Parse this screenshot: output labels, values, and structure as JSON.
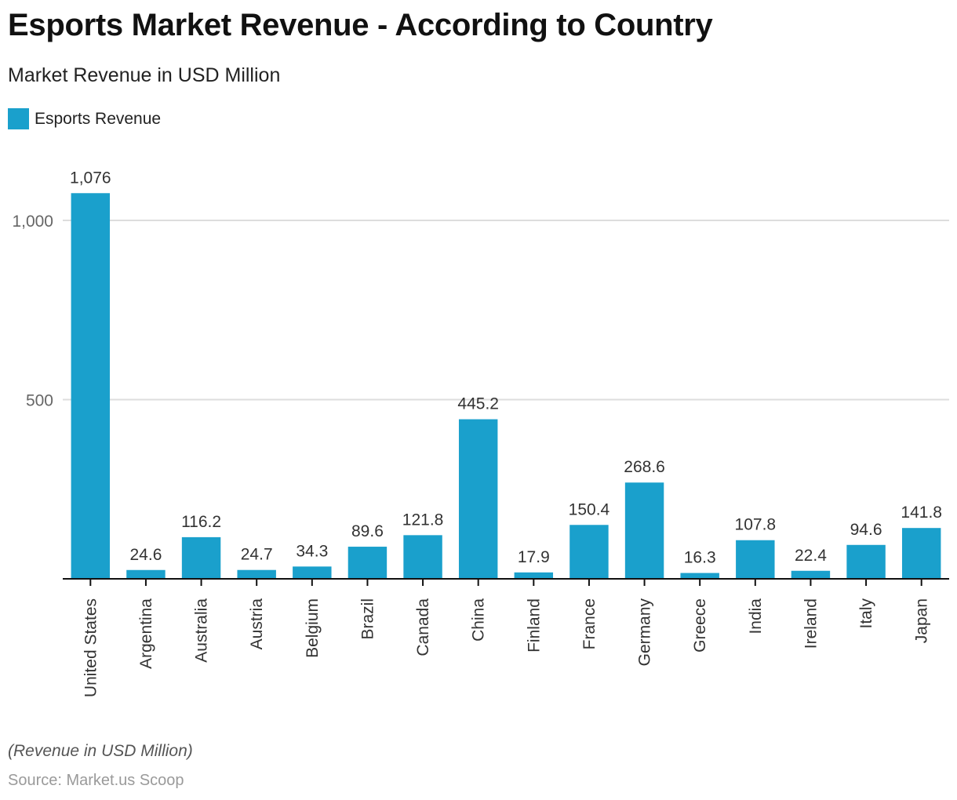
{
  "title": "Esports Market Revenue - According to Country",
  "subtitle": "Market Revenue in USD Million",
  "legend": [
    {
      "label": "Esports Revenue",
      "color": "#1aa0cc"
    }
  ],
  "note": "(Revenue in USD Million)",
  "source": "Source: Market.us Scoop",
  "chart_data": {
    "type": "bar",
    "title": "Esports Market Revenue - According to Country",
    "subtitle": "Market Revenue in USD Million",
    "xlabel": "",
    "ylabel": "",
    "ylim": [
      0,
      1076
    ],
    "yticks": [
      500,
      1000
    ],
    "ytick_labels": [
      "500",
      "1,000"
    ],
    "grid": true,
    "legend_position": "top-left",
    "categories": [
      "United States",
      "Argentina",
      "Australia",
      "Austria",
      "Belgium",
      "Brazil",
      "Canada",
      "China",
      "Finland",
      "France",
      "Germany",
      "Greece",
      "India",
      "Ireland",
      "Italy",
      "Japan"
    ],
    "series": [
      {
        "name": "Esports Revenue",
        "color": "#1aa0cc",
        "values": [
          1076,
          24.6,
          116.2,
          24.7,
          34.3,
          89.6,
          121.8,
          445.2,
          17.9,
          150.4,
          268.6,
          16.3,
          107.8,
          22.4,
          94.6,
          141.8
        ],
        "labels": [
          "1,076",
          "24.6",
          "116.2",
          "24.7",
          "34.3",
          "89.6",
          "121.8",
          "445.2",
          "17.9",
          "150.4",
          "268.6",
          "16.3",
          "107.8",
          "22.4",
          "94.6",
          "141.8"
        ]
      }
    ]
  }
}
